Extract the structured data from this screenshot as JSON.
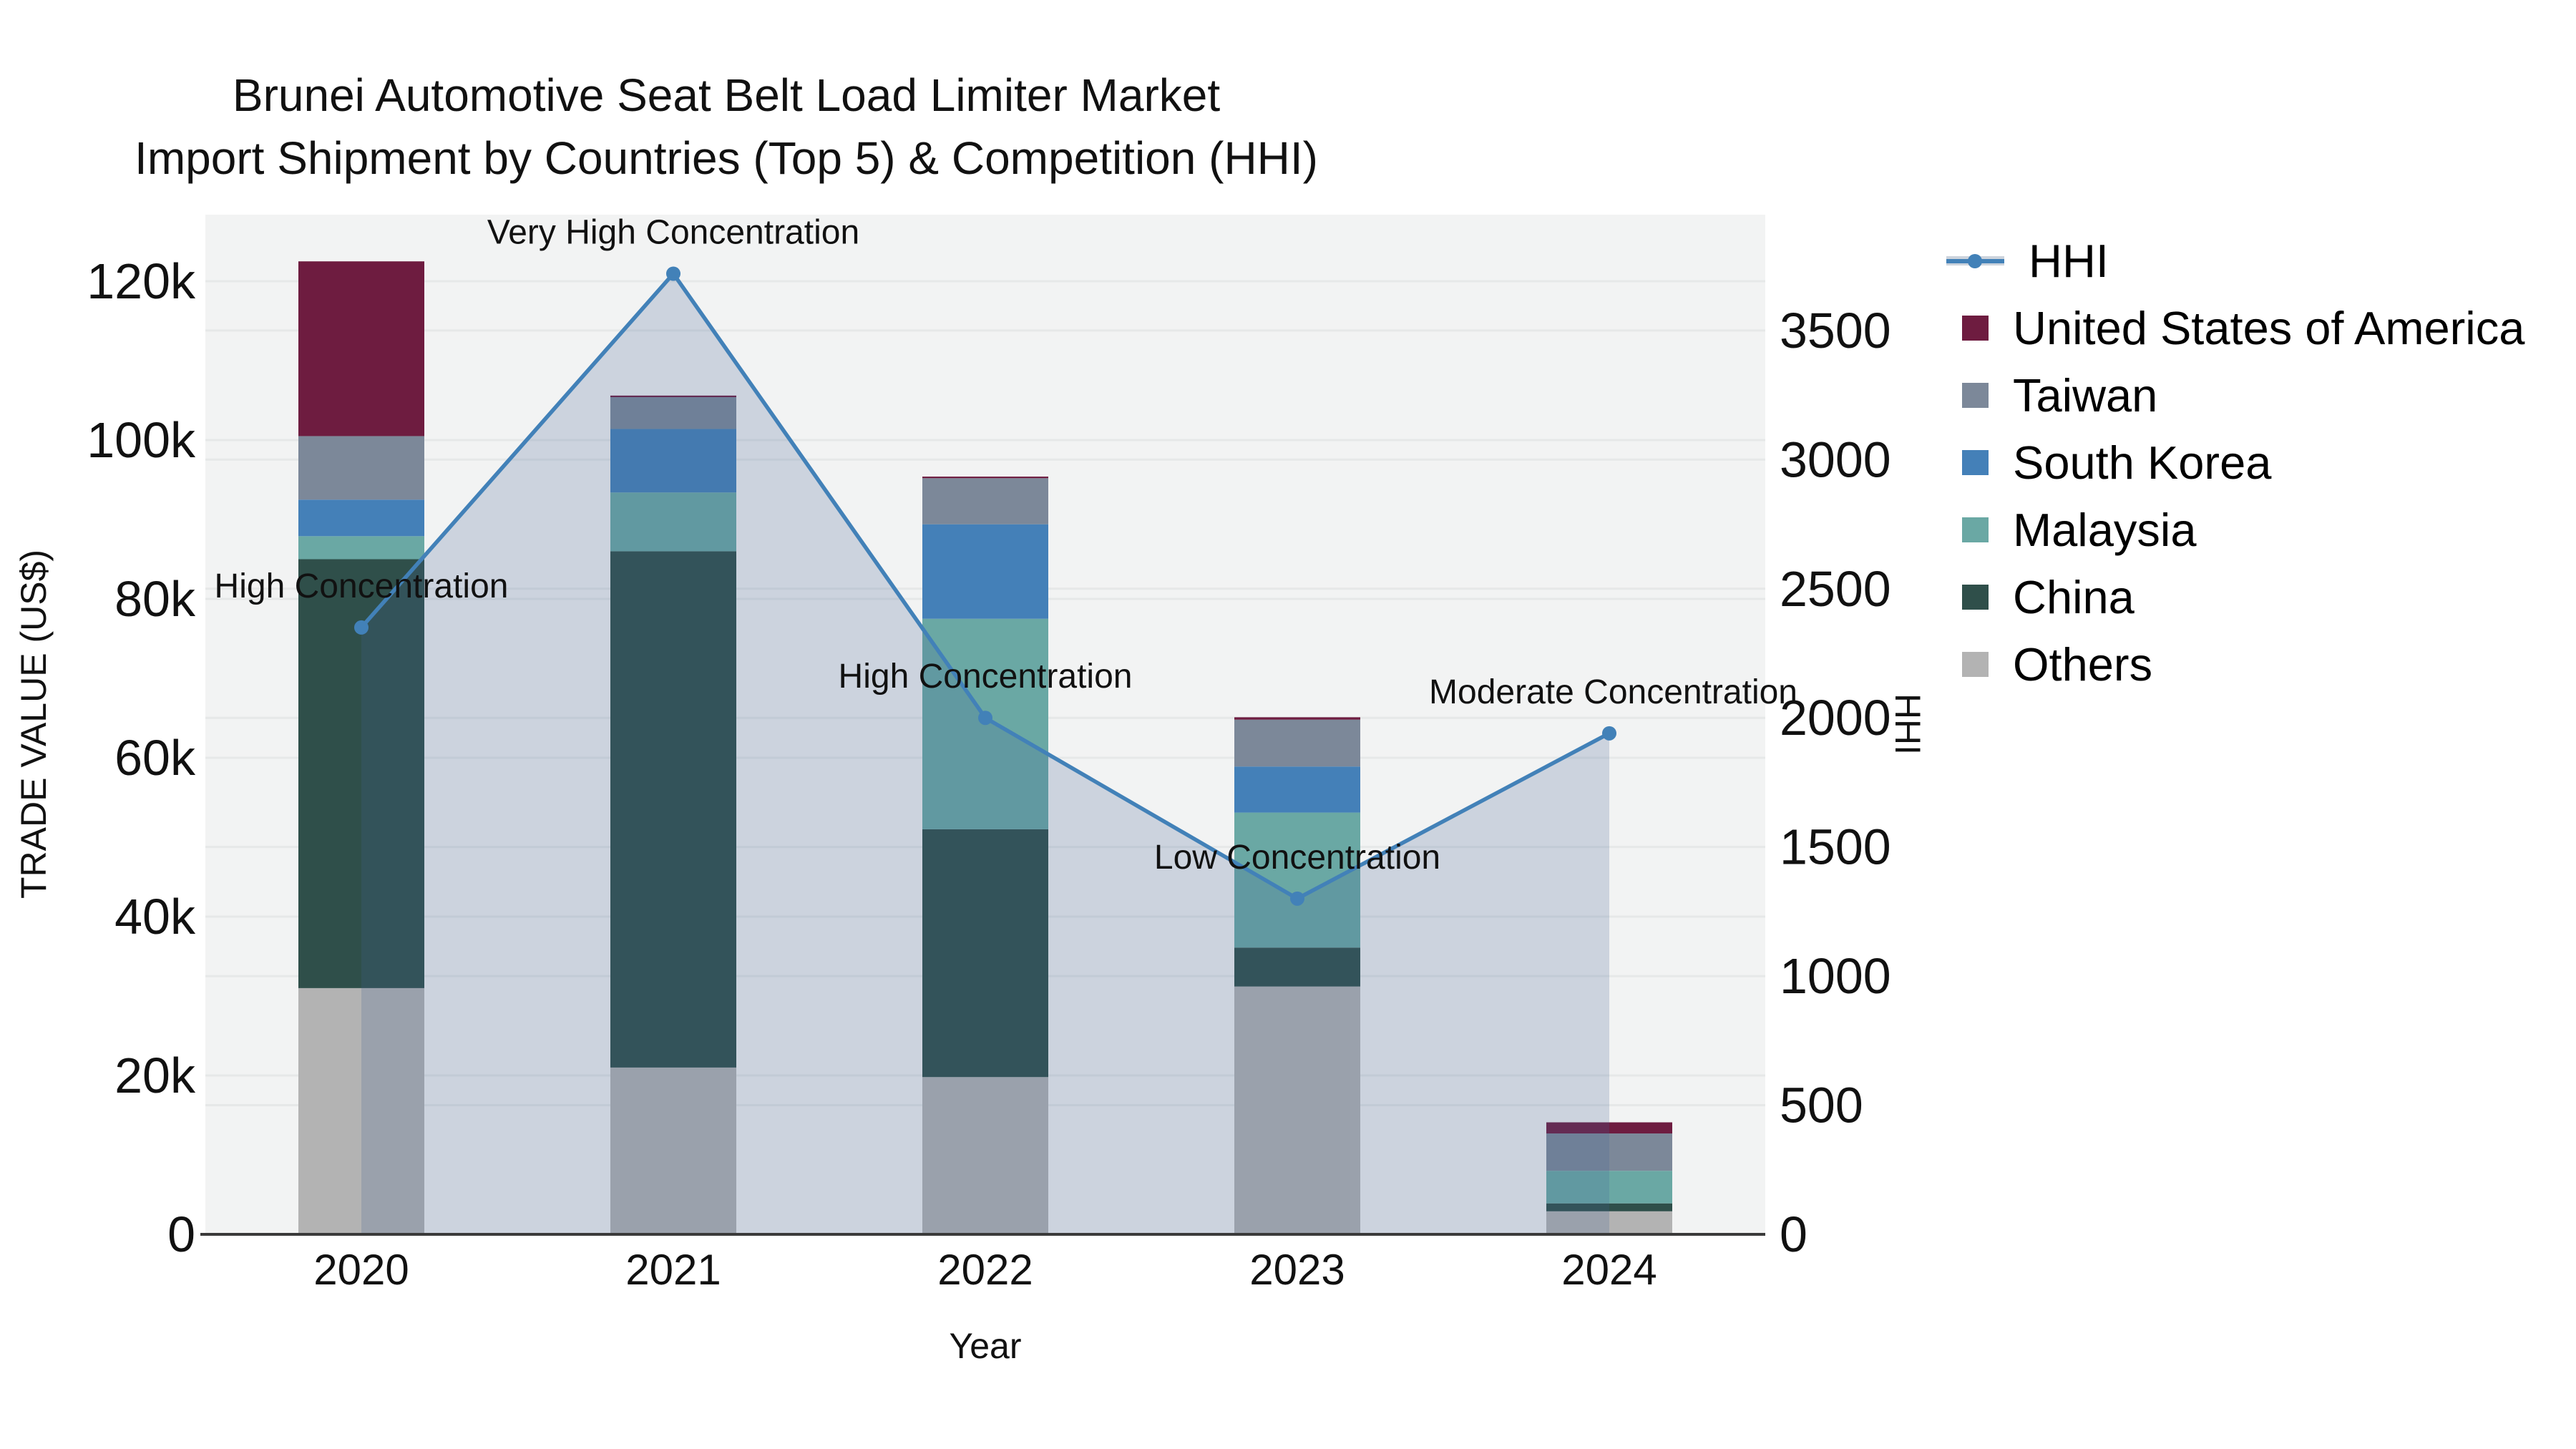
{
  "title": {
    "line1": "Brunei Automotive Seat Belt Load Limiter Market",
    "line2": "Import Shipment by Countries (Top 5) & Competition (HHI)"
  },
  "axes": {
    "x_title": "Year",
    "y_left_title": "TRADE VALUE (US$)",
    "y_right_title": "HHI"
  },
  "legend_items": [
    {
      "label": "HHI",
      "type": "line",
      "color": "#4281b8"
    },
    {
      "label": "United States of America",
      "type": "box",
      "color": "#6e1c40"
    },
    {
      "label": "Taiwan",
      "type": "box",
      "color": "#7c8899"
    },
    {
      "label": "South Korea",
      "type": "box",
      "color": "#4480b8"
    },
    {
      "label": "Malaysia",
      "type": "box",
      "color": "#6aa8a4"
    },
    {
      "label": "China",
      "type": "box",
      "color": "#2f4f4a"
    },
    {
      "label": "Others",
      "type": "box",
      "color": "#b3b3b3"
    }
  ],
  "chart_data": {
    "type": "bar",
    "subtype": "stacked-bars-with-hhi-line-area",
    "title": "Brunei Automotive Seat Belt Load Limiter Market Import Shipment by Countries (Top 5) & Competition (HHI)",
    "xlabel": "Year",
    "ylabel": "TRADE VALUE (US$)",
    "ylabel_right": "HHI",
    "categories": [
      "2020",
      "2021",
      "2022",
      "2023",
      "2024"
    ],
    "series": [
      {
        "name": "Others",
        "color": "#b3b3b3",
        "values": [
          31000,
          21000,
          19800,
          31200,
          2900
        ]
      },
      {
        "name": "China",
        "color": "#2f4f4a",
        "values": [
          54000,
          65000,
          31200,
          4900,
          1000
        ]
      },
      {
        "name": "Malaysia",
        "color": "#6aa8a4",
        "values": [
          2900,
          7400,
          26500,
          17000,
          4100
        ]
      },
      {
        "name": "South Korea",
        "color": "#4480b8",
        "values": [
          4600,
          8000,
          11900,
          5800,
          0
        ]
      },
      {
        "name": "Taiwan",
        "color": "#7c8899",
        "values": [
          8000,
          4000,
          5800,
          5900,
          4700
        ]
      },
      {
        "name": "United States of America",
        "color": "#6e1c40",
        "values": [
          22000,
          200,
          200,
          300,
          1400
        ]
      }
    ],
    "line_series": {
      "name": "HHI",
      "axis": "right",
      "color": "#4281b8",
      "area_fill": "rgba(70,100,150,0.22)",
      "values": [
        2350,
        3720,
        2000,
        1300,
        1940
      ]
    },
    "annotations": [
      {
        "year": "2020",
        "text": "High Concentration"
      },
      {
        "year": "2021",
        "text": "Very High Concentration"
      },
      {
        "year": "2022",
        "text": "High Concentration"
      },
      {
        "year": "2023",
        "text": "Low Concentration"
      },
      {
        "year": "2024",
        "text": "Moderate Concentration"
      }
    ],
    "ylim_left": [
      0,
      128400
    ],
    "ylim_right": [
      0,
      3950
    ],
    "yticks_left": [
      "0",
      "20k",
      "40k",
      "60k",
      "80k",
      "100k",
      "120k"
    ],
    "yticks_left_values": [
      0,
      20000,
      40000,
      60000,
      80000,
      100000,
      120000
    ],
    "yticks_right": [
      "0",
      "500",
      "1000",
      "1500",
      "2000",
      "2500",
      "3000",
      "3500"
    ],
    "yticks_right_values": [
      0,
      500,
      1000,
      1500,
      2000,
      2500,
      3000,
      3500
    ],
    "grid": true,
    "legend_position": "right",
    "plot_bg": "#f2f3f3",
    "grid_color": "#e6e8e8",
    "axis_line_color": "#3a3a3a"
  }
}
